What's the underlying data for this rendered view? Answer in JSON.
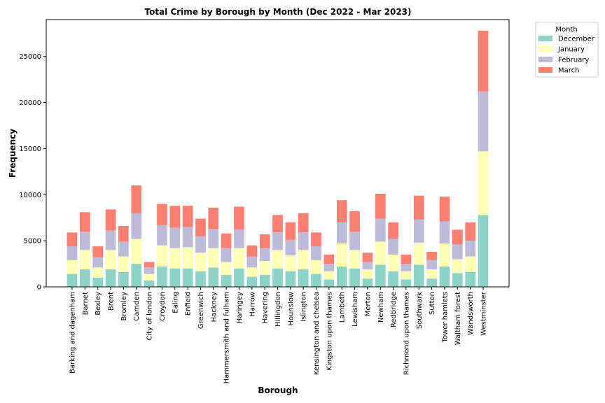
{
  "chart_data": {
    "type": "bar",
    "stacked": true,
    "title": "Total Crime by Borough by Month (Dec 2022 - Mar 2023)",
    "xlabel": "Borough",
    "ylabel": "Frequency",
    "ylim": [
      0,
      29000
    ],
    "yticks": [
      0,
      5000,
      10000,
      15000,
      20000,
      25000
    ],
    "grid": false,
    "legend": {
      "title": "Month",
      "placement": "outside-top-right"
    },
    "categories": [
      "Barking and dagenham",
      "Barnet",
      "Bexley",
      "Brent",
      "Bromley",
      "Camden",
      "City of london",
      "Croydon",
      "Ealing",
      "Enfield",
      "Greenwich",
      "Hackney",
      "Hammersmith and fulham",
      "Haringey",
      "Harrow",
      "Havering",
      "Hillingdon",
      "Hounslow",
      "Islington",
      "Kensington and chelsea",
      "Kingston upon thames",
      "Lambeth",
      "Lewisham",
      "Merton",
      "Newham",
      "Redbridge",
      "Richmond upon thames",
      "Southwark",
      "Sutton",
      "Tower hamlets",
      "Waltham forest",
      "Wandsworth",
      "Westminster"
    ],
    "series": [
      {
        "name": "December",
        "color": "#8dd3c7",
        "values": [
          1400,
          1900,
          1000,
          1900,
          1600,
          2500,
          700,
          2200,
          2000,
          2000,
          1700,
          2100,
          1300,
          2000,
          1100,
          1300,
          2000,
          1700,
          1900,
          1400,
          800,
          2200,
          2000,
          900,
          2400,
          1700,
          800,
          2400,
          900,
          2200,
          1500,
          1600,
          7800
        ]
      },
      {
        "name": "January",
        "color": "#ffffb3",
        "values": [
          1500,
          2100,
          1100,
          2100,
          1700,
          2700,
          700,
          2300,
          2200,
          2300,
          2000,
          2100,
          1400,
          2200,
          1000,
          1500,
          2000,
          1700,
          2100,
          1500,
          900,
          2500,
          2000,
          1000,
          2500,
          1800,
          900,
          2400,
          1000,
          2500,
          1500,
          1700,
          6900
        ]
      },
      {
        "name": "February",
        "color": "#bebada",
        "values": [
          1500,
          2000,
          1100,
          2100,
          1600,
          2800,
          700,
          2200,
          2200,
          2200,
          1800,
          2100,
          1500,
          2000,
          1200,
          1400,
          1900,
          1700,
          1900,
          1500,
          800,
          2300,
          2000,
          800,
          2500,
          1700,
          800,
          2500,
          1000,
          2400,
          1600,
          1700,
          6500
        ]
      },
      {
        "name": "March",
        "color": "#fb8072",
        "values": [
          1500,
          2100,
          1200,
          2300,
          1700,
          3000,
          600,
          2300,
          2400,
          2300,
          1900,
          2300,
          1600,
          2500,
          1200,
          1500,
          1900,
          1900,
          2100,
          1500,
          1000,
          2400,
          2200,
          1000,
          2700,
          1800,
          1000,
          2600,
          900,
          2700,
          1600,
          2000,
          6600
        ]
      }
    ]
  }
}
